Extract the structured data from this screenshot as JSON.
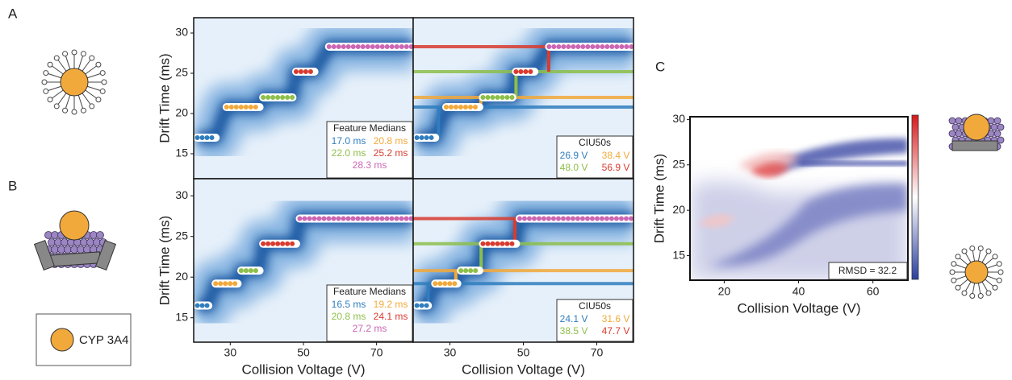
{
  "panel_labels": [
    "A",
    "B",
    "C"
  ],
  "key_label": "CYP 3A4",
  "chart_data": [
    {
      "type": "ciu",
      "ylabel": "Drift Time (ms)",
      "xlim": [
        20,
        80
      ],
      "xticks": [
        30,
        50,
        70
      ],
      "ylim": [
        11.9,
        31.9
      ],
      "yticks": [
        15,
        20,
        25,
        30
      ],
      "features_title": "Feature Medians",
      "features": {
        "values": [
          17.0,
          20.8,
          22.0,
          25.2,
          28.3
        ],
        "value_labels": [
          "17.0 ms",
          "20.8 ms",
          "22.0 ms",
          "25.2 ms",
          "28.3 ms"
        ],
        "xranges": [
          [
            21,
            26
          ],
          [
            29,
            38
          ],
          [
            39,
            47
          ],
          [
            48,
            53
          ],
          [
            57,
            80
          ]
        ],
        "colors": [
          "#2f7ebf",
          "#f2a93b",
          "#8dbf4a",
          "#d93b2f",
          "#cc66b3"
        ]
      },
      "ciu50_title": "CIU50s",
      "ciu50": {
        "values": [
          26.9,
          38.4,
          48.0,
          56.9
        ],
        "value_labels": [
          "26.9 V",
          "38.4 V",
          "48.0 V",
          "56.9 V"
        ],
        "colors": [
          "#2f7ebf",
          "#f2a93b",
          "#8dbf4a",
          "#d93b2f"
        ]
      }
    },
    {
      "type": "ciu",
      "ylabel": "Drift Time (ms)",
      "xlabel": "Collision Voltage (V)",
      "xlim": [
        20,
        80
      ],
      "xticks": [
        30,
        50,
        70
      ],
      "ylim": [
        12,
        32.1
      ],
      "yticks": [
        15,
        20,
        25,
        30
      ],
      "features_title": "Feature Medians",
      "features": {
        "values": [
          16.5,
          19.2,
          20.8,
          24.1,
          27.2
        ],
        "value_labels": [
          "16.5 ms",
          "19.2 ms",
          "20.8 ms",
          "24.1 ms",
          "27.2 ms"
        ],
        "xranges": [
          [
            21,
            24
          ],
          [
            26,
            32
          ],
          [
            33,
            38
          ],
          [
            39,
            48
          ],
          [
            49,
            80
          ]
        ],
        "colors": [
          "#2f7ebf",
          "#f2a93b",
          "#8dbf4a",
          "#d93b2f",
          "#cc66b3"
        ]
      },
      "ciu50_title": "CIU50s",
      "ciu50": {
        "values": [
          24.1,
          31.6,
          38.5,
          47.7
        ],
        "value_labels": [
          "24.1 V",
          "31.6 V",
          "38.5 V",
          "47.7 V"
        ],
        "colors": [
          "#2f7ebf",
          "#f2a93b",
          "#8dbf4a",
          "#d93b2f"
        ]
      }
    },
    {
      "type": "difference",
      "ylabel": "Drift Time (ms)",
      "xlabel": "Collision Voltage (V)",
      "xlim": [
        10.8,
        69.4
      ],
      "xticks": [
        20,
        40,
        60
      ],
      "ylim": [
        12.3,
        30.3
      ],
      "yticks": [
        15,
        20,
        25,
        30
      ],
      "annotation": "RMSD = 32.2"
    }
  ]
}
